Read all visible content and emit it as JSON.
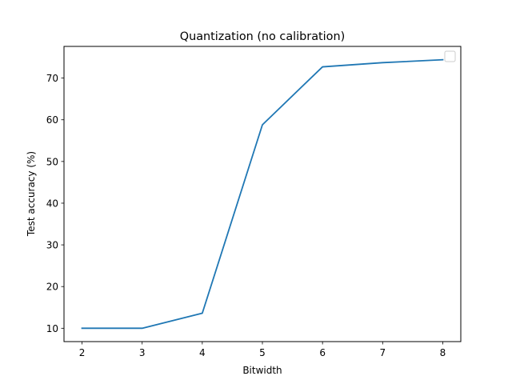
{
  "chart_data": {
    "type": "line",
    "title": "Quantization (no calibration)",
    "xlabel": "Bitwidth",
    "ylabel": "Test accuracy (%)",
    "xlim": [
      1.7,
      8.3
    ],
    "ylim": [
      6.8,
      77.6
    ],
    "xticks": [
      2,
      3,
      4,
      5,
      6,
      7,
      8
    ],
    "yticks": [
      10,
      20,
      30,
      40,
      50,
      60,
      70
    ],
    "grid": false,
    "legend": {
      "placement": "upper right",
      "entries": []
    },
    "series": [
      {
        "color": "#1f77b4",
        "x": [
          2,
          3,
          4,
          5,
          6,
          7,
          8
        ],
        "y": [
          10.0,
          10.0,
          13.6,
          58.8,
          72.7,
          73.7,
          74.4
        ]
      }
    ]
  }
}
